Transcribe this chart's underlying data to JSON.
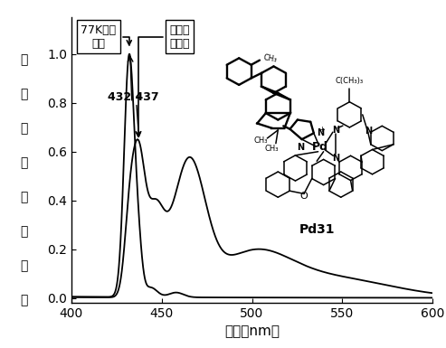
{
  "xlabel": "波长（nm）",
  "ylabel_chars": [
    "归",
    "一",
    "化",
    "的",
    "发",
    "光",
    "强",
    "度"
  ],
  "xlim": [
    400,
    600
  ],
  "ylim": [
    -0.02,
    1.15
  ],
  "xticks": [
    400,
    450,
    500,
    550,
    600
  ],
  "yticks": [
    0.0,
    0.2,
    0.4,
    0.6,
    0.8,
    1.0
  ],
  "peak1_nm": 432,
  "peak2_nm": 437,
  "label_77k_line1": "77K发射",
  "label_77k_line2": "光谱",
  "label_rt_line1": "室温发",
  "label_rt_line2": "射光谱",
  "pd31_label": "Pd31",
  "line_color": "#000000",
  "background_color": "#ffffff",
  "fig_width": 4.93,
  "fig_height": 3.85
}
